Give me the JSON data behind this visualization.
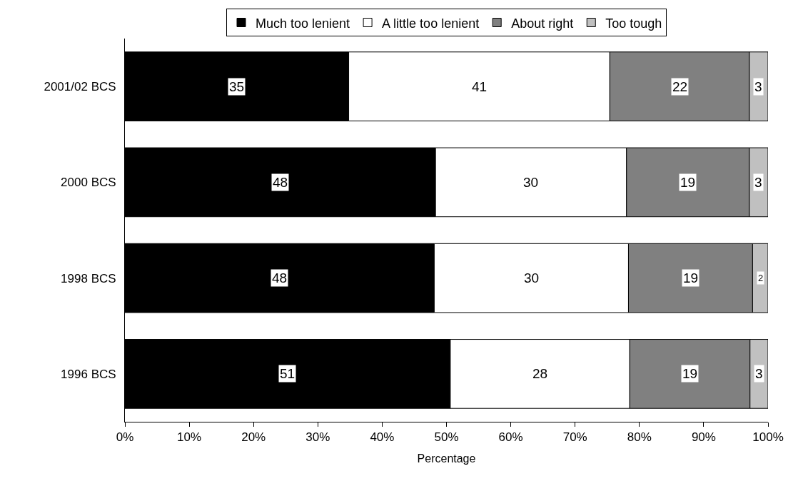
{
  "chart_data": {
    "type": "bar",
    "orientation": "horizontal",
    "stacked": true,
    "xlabel": "Percentage",
    "categories": [
      "2001/02 BCS",
      "2000 BCS",
      "1998 BCS",
      "1996 BCS"
    ],
    "series": [
      {
        "name": "Much too lenient",
        "color": "#000000",
        "values": [
          34.8,
          48.3,
          48.1,
          50.6
        ],
        "value_labels": [
          "35",
          "48",
          "48",
          "51"
        ]
      },
      {
        "name": "A little too lenient",
        "color": "#ffffff",
        "values": [
          40.6,
          29.7,
          30.2,
          27.9
        ],
        "value_labels": [
          "41",
          "30",
          "30",
          "28"
        ]
      },
      {
        "name": "About right",
        "color": "#808080",
        "values": [
          21.7,
          19.1,
          19.3,
          18.7
        ],
        "value_labels": [
          "22",
          "19",
          "19",
          "19"
        ]
      },
      {
        "name": "Too tough",
        "color": "#c0c0c0",
        "values": [
          2.9,
          2.9,
          2.4,
          2.8
        ],
        "value_labels": [
          "3",
          "3",
          "2",
          "3"
        ]
      }
    ],
    "xlim": [
      0,
      100
    ],
    "xticks": [
      {
        "value": 0,
        "label": "0%"
      },
      {
        "value": 10,
        "label": "10%"
      },
      {
        "value": 20,
        "label": "20%"
      },
      {
        "value": 30,
        "label": "30%"
      },
      {
        "value": 40,
        "label": "40%"
      },
      {
        "value": 50,
        "label": "50%"
      },
      {
        "value": 60,
        "label": "60%"
      },
      {
        "value": 70,
        "label": "70%"
      },
      {
        "value": 80,
        "label": "80%"
      },
      {
        "value": 90,
        "label": "90%"
      },
      {
        "value": 100,
        "label": "100%"
      }
    ],
    "grid": false,
    "legend": "top"
  }
}
